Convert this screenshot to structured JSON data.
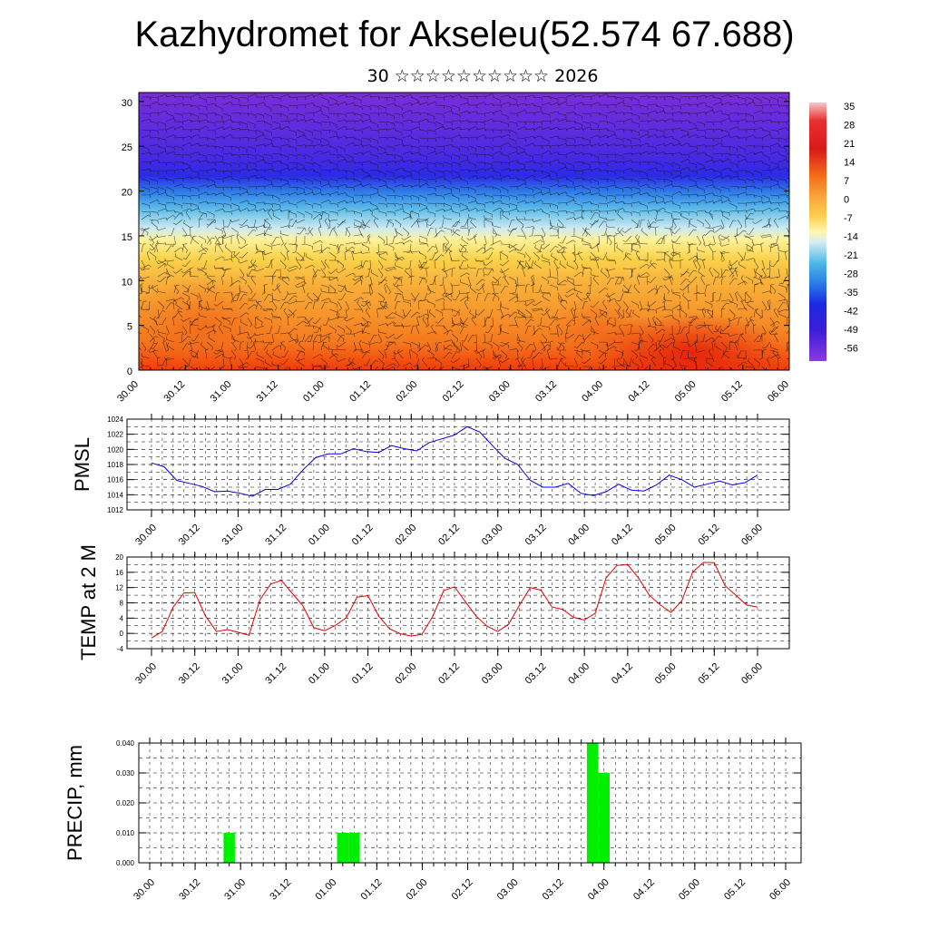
{
  "title": "Kazhydromet for Akseleu(52.574 67.688)",
  "subtitle": "30 ☆☆☆☆☆☆☆☆☆☆ 2026",
  "colorbar": {
    "labels": [
      "35",
      "28",
      "21",
      "14",
      "7",
      "0",
      "-7",
      "-14",
      "-21",
      "-28",
      "-35",
      "-42",
      "-49",
      "-56"
    ]
  },
  "chart_data": [
    {
      "type": "heatmap",
      "title": "Kazhydromet for Akseleu(52.574 67.688)",
      "x_tick_labels": [
        "30.00",
        "30.12",
        "31.00",
        "31.12",
        "01.00",
        "01.12",
        "02.00",
        "02.12",
        "03.00",
        "03.12",
        "04.00",
        "04.12",
        "05.00",
        "05.12",
        "06.00"
      ],
      "y_ticks": [
        0,
        5,
        10,
        15,
        20,
        25,
        30
      ],
      "ylim": [
        0,
        31
      ],
      "colorbar_range": [
        -56,
        35
      ],
      "overlay": "wind barbs"
    },
    {
      "type": "line",
      "ylabel": "PMSL",
      "ylim": [
        1012,
        1024
      ],
      "y_ticks": [
        1012,
        1014,
        1016,
        1018,
        1020,
        1022,
        1024
      ],
      "x_tick_labels": [
        "30.00",
        "30.12",
        "31.00",
        "31.12",
        "01.00",
        "01.12",
        "02.00",
        "02.12",
        "03.00",
        "03.12",
        "04.00",
        "04.12",
        "05.00",
        "05.12",
        "06.00"
      ],
      "color": "#0000dd",
      "values": [
        1018.2,
        1017.7,
        1015.9,
        1015.5,
        1015.1,
        1014.4,
        1014.5,
        1014.2,
        1013.8,
        1014.7,
        1014.7,
        1015.4,
        1017.3,
        1018.9,
        1019.4,
        1019.4,
        1020.1,
        1019.7,
        1019.6,
        1020.5,
        1020.1,
        1019.8,
        1020.9,
        1021.4,
        1021.9,
        1023.0,
        1022.3,
        1020.5,
        1018.8,
        1018.0,
        1015.9,
        1015.0,
        1015.0,
        1015.5,
        1014.2,
        1013.9,
        1014.4,
        1015.4,
        1014.6,
        1014.5,
        1015.3,
        1016.6,
        1016.0,
        1015.0,
        1015.4,
        1015.8,
        1015.3,
        1015.6,
        1016.6
      ]
    },
    {
      "type": "line",
      "ylabel": "TEMP at 2 M",
      "ylim": [
        -4,
        20
      ],
      "y_ticks": [
        -4,
        0,
        4,
        8,
        12,
        16,
        20
      ],
      "x_tick_labels": [
        "30.00",
        "30.12",
        "31.00",
        "31.12",
        "01.00",
        "01.12",
        "02.00",
        "02.12",
        "03.00",
        "03.12",
        "04.00",
        "04.12",
        "05.00",
        "05.12",
        "06.00"
      ],
      "color": "#e00000",
      "values": [
        -1.2,
        0.5,
        6.9,
        10.6,
        10.7,
        4.5,
        0.5,
        1.0,
        0.3,
        -0.5,
        8.7,
        12.9,
        13.9,
        10.5,
        7.2,
        1.5,
        0.7,
        2.1,
        4.1,
        9.5,
        9.9,
        4.5,
        1.2,
        -0.1,
        -0.7,
        -0.2,
        4.5,
        11.2,
        12.2,
        8.3,
        4.5,
        1.9,
        0.5,
        2.4,
        7.4,
        12.0,
        11.3,
        6.9,
        6.3,
        4.2,
        3.5,
        5.3,
        14.5,
        17.8,
        18.0,
        14.5,
        10.0,
        7.5,
        5.5,
        8.5,
        16.0,
        18.6,
        18.5,
        12.5,
        10.0,
        7.4,
        6.9
      ]
    },
    {
      "type": "bar",
      "ylabel": "PRECIP, mm",
      "ylim": [
        0,
        0.04
      ],
      "y_tick_labels": [
        "0.000",
        "0.010",
        "0.020",
        "0.030",
        "0.040"
      ],
      "x_tick_labels": [
        "30.00",
        "30.12",
        "31.00",
        "31.12",
        "01.00",
        "01.12",
        "02.00",
        "02.12",
        "03.00",
        "03.12",
        "04.00",
        "04.12",
        "05.00",
        "05.12",
        "06.00"
      ],
      "color": "#00ee00",
      "bars": [
        {
          "time_hours": 21,
          "value": 0.01
        },
        {
          "time_hours": 51,
          "value": 0.01
        },
        {
          "time_hours": 54,
          "value": 0.01
        },
        {
          "time_hours": 117,
          "value": 0.04
        },
        {
          "time_hours": 120,
          "value": 0.03
        }
      ]
    }
  ]
}
